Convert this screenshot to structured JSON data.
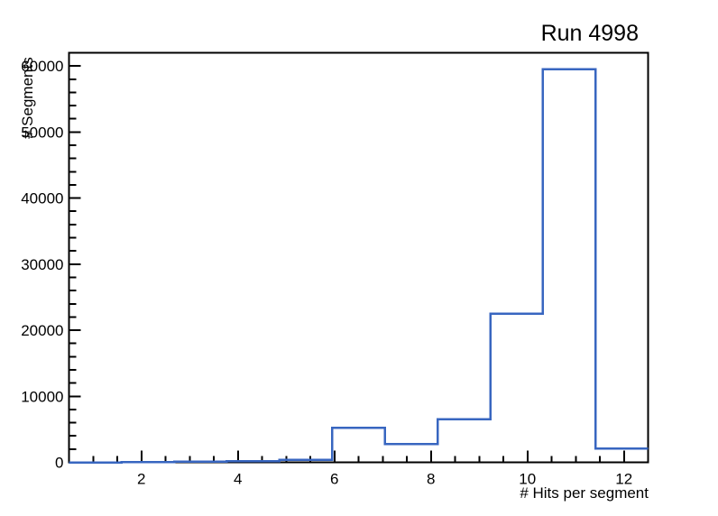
{
  "title": "Run 4998",
  "chart_data": {
    "type": "histogram",
    "title": "Run 4998",
    "xlabel": "# Hits per segment",
    "ylabel": "# Segments",
    "xlim": [
      0.5,
      12.5
    ],
    "ylim": [
      0,
      62000
    ],
    "n_bins": 11,
    "bin_edges": [
      0.5,
      1.59,
      2.68,
      3.77,
      4.86,
      5.95,
      7.05,
      8.14,
      9.23,
      10.32,
      11.41,
      12.5
    ],
    "bin_contents": [
      0,
      30,
      80,
      150,
      350,
      5200,
      2800,
      6500,
      22500,
      59500,
      2100
    ],
    "x_major_ticks": [
      2,
      4,
      6,
      8,
      10,
      12
    ],
    "x_minor_tick_step": 0.5,
    "y_major_ticks": [
      0,
      10000,
      20000,
      30000,
      40000,
      50000,
      60000
    ],
    "y_minor_tick_step": 2000,
    "line_color": "#3866c0",
    "axis_color": "#000000",
    "grid": false,
    "legend_position": "none"
  }
}
